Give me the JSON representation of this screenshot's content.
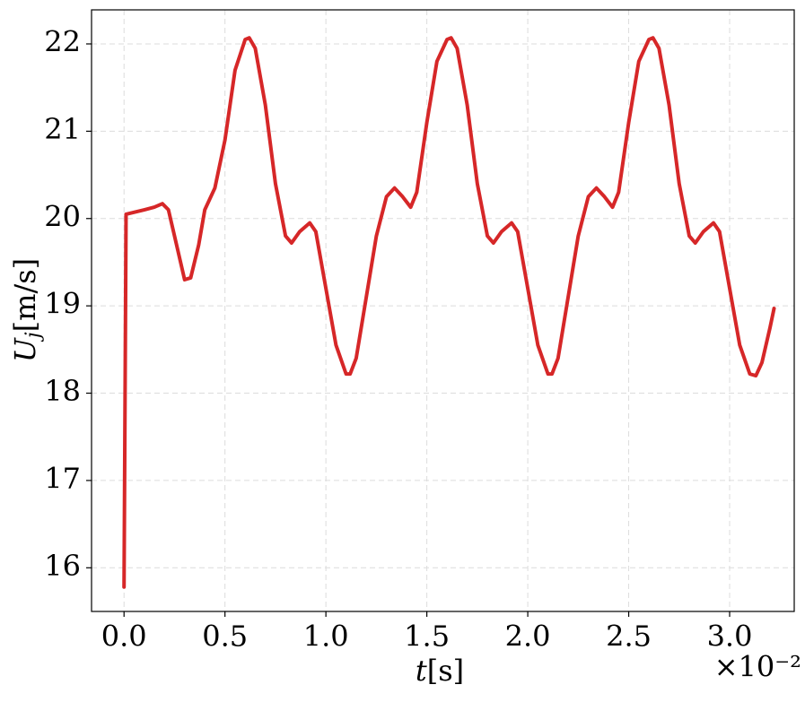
{
  "chart_data": {
    "type": "line",
    "xlabel": {
      "symbol": "t",
      "unit": "[s]"
    },
    "ylabel": {
      "symbol": "U",
      "subscript": "j",
      "unit": "[m/s]"
    },
    "x_multiplier": "×10⁻²",
    "xlim": [
      -0.161,
      3.32
    ],
    "ylim": [
      15.5,
      22.39
    ],
    "xticks": [
      {
        "value": 0,
        "label": "0.0"
      },
      0.5,
      {
        "value": 1,
        "label": "1.0"
      },
      1.5,
      {
        "value": 2,
        "label": "2.0"
      },
      2.5,
      {
        "value": 3,
        "label": "3.0"
      }
    ],
    "yticks": [
      16,
      17,
      18,
      19,
      20,
      21,
      22
    ],
    "grid": true,
    "series": [
      {
        "color": "#d62728",
        "x": [
          0,
          0.01,
          0.1,
          0.15,
          0.19,
          0.22,
          0.25,
          0.3,
          0.33,
          0.37,
          0.4,
          0.45,
          0.5,
          0.55,
          0.6,
          0.62,
          0.65,
          0.7,
          0.75,
          0.8,
          0.83,
          0.87,
          0.92,
          0.95,
          1.0,
          1.05,
          1.1,
          1.12,
          1.15,
          1.2,
          1.25,
          1.3,
          1.34,
          1.38,
          1.42,
          1.45,
          1.5,
          1.55,
          1.6,
          1.62,
          1.65,
          1.7,
          1.75,
          1.8,
          1.83,
          1.87,
          1.92,
          1.95,
          2.0,
          2.05,
          2.1,
          2.12,
          2.15,
          2.2,
          2.25,
          2.3,
          2.34,
          2.38,
          2.42,
          2.45,
          2.5,
          2.55,
          2.6,
          2.62,
          2.65,
          2.7,
          2.75,
          2.8,
          2.83,
          2.87,
          2.92,
          2.95,
          3.0,
          3.05,
          3.1,
          3.13,
          3.16,
          3.2,
          3.22
        ],
        "values": [
          15.78,
          20.05,
          20.1,
          20.13,
          20.17,
          20.1,
          19.8,
          19.3,
          19.32,
          19.7,
          20.1,
          20.35,
          20.9,
          21.7,
          22.05,
          22.07,
          21.95,
          21.3,
          20.4,
          19.8,
          19.72,
          19.85,
          19.95,
          19.85,
          19.2,
          18.55,
          18.22,
          18.22,
          18.4,
          19.1,
          19.8,
          20.25,
          20.35,
          20.25,
          20.13,
          20.3,
          21.1,
          21.8,
          22.05,
          22.07,
          21.95,
          21.3,
          20.4,
          19.8,
          19.72,
          19.85,
          19.95,
          19.85,
          19.2,
          18.55,
          18.22,
          18.22,
          18.4,
          19.1,
          19.8,
          20.25,
          20.35,
          20.25,
          20.13,
          20.3,
          21.1,
          21.8,
          22.05,
          22.07,
          21.95,
          21.3,
          20.4,
          19.8,
          19.72,
          19.85,
          19.95,
          19.85,
          19.2,
          18.55,
          18.22,
          18.2,
          18.35,
          18.75,
          18.97
        ]
      }
    ]
  }
}
